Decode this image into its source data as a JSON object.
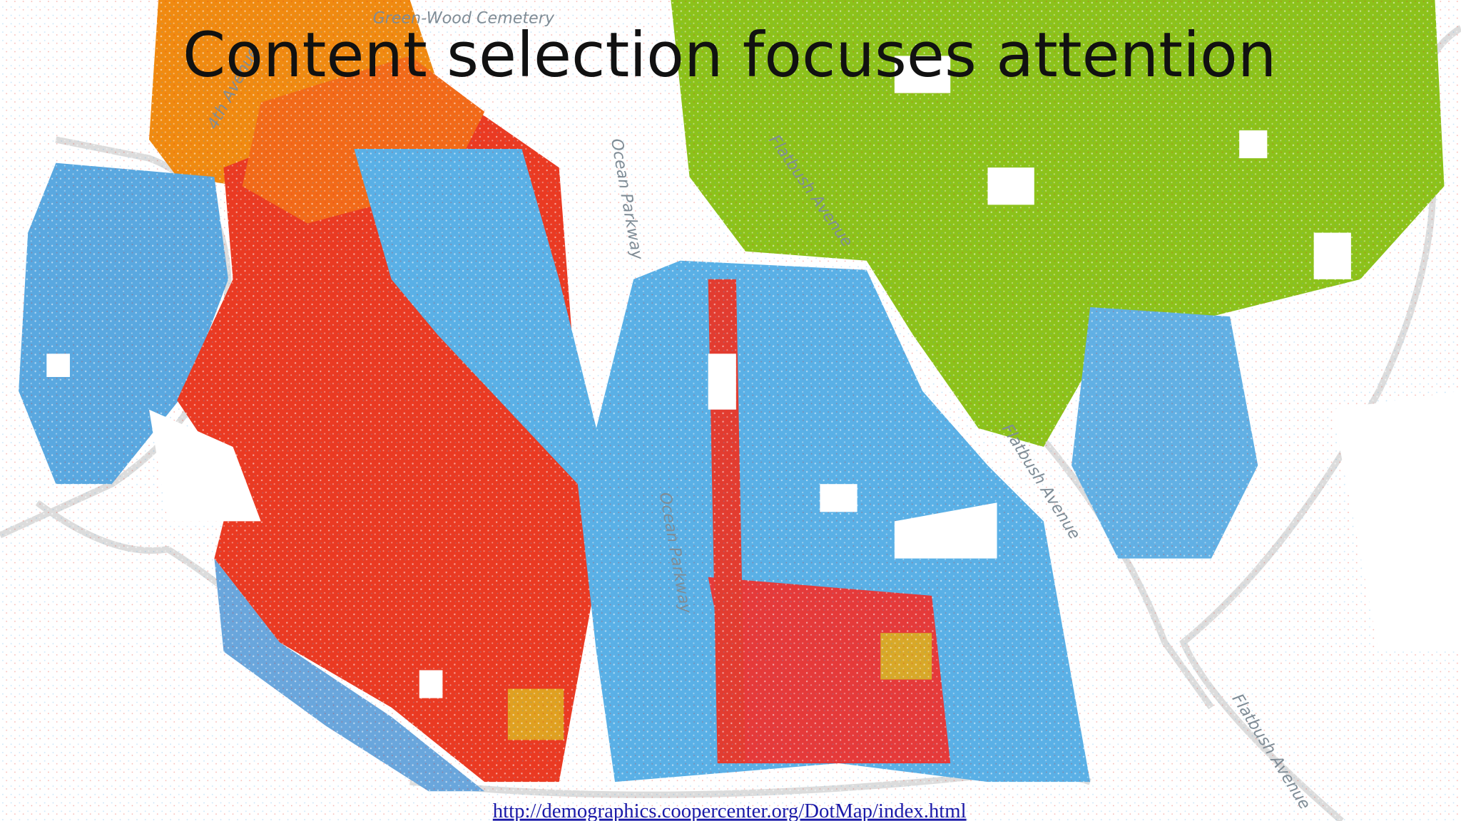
{
  "title": "Content selection focuses attention",
  "map": {
    "labels": [
      "Green-Wood Cemetery",
      "4th Avenue",
      "Ocean Parkway",
      "Flatbush Avenue",
      "Ocean Parkway",
      "Flatbush Avenue",
      "Flatbush Avenue"
    ]
  },
  "footer": {
    "url": "http://demographics.coopercenter.org/DotMap/index.html"
  }
}
